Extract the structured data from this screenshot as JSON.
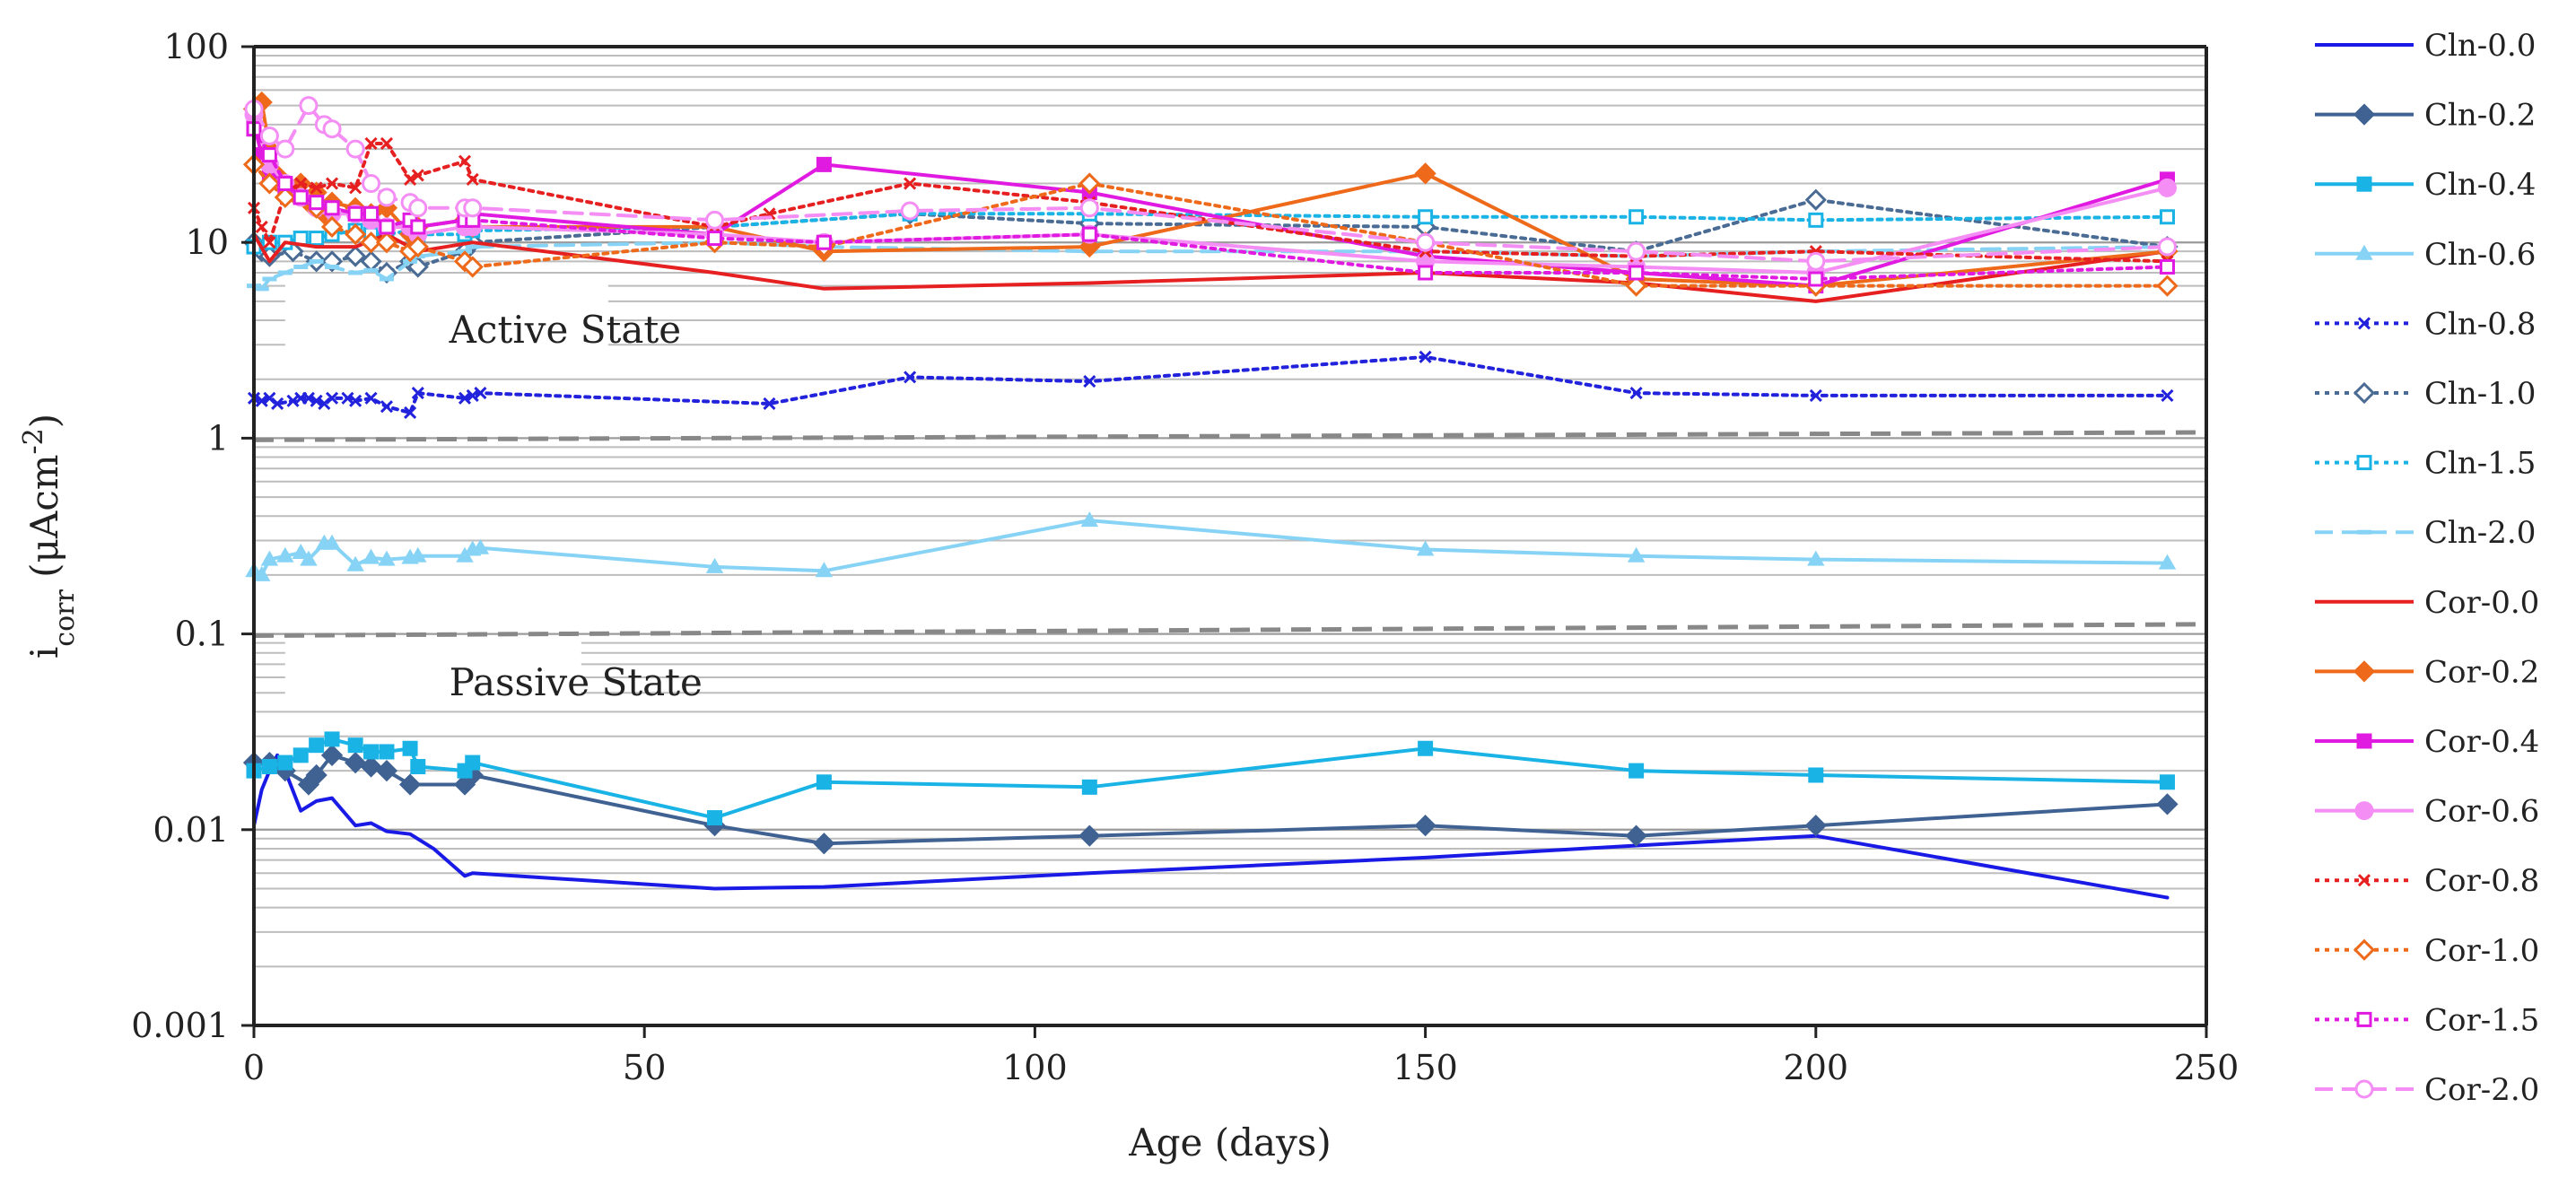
{
  "chart_data": {
    "type": "line",
    "y_scale": "log",
    "xlabel": "Age (days)",
    "ylabel_main": "i",
    "ylabel_sub": "corr",
    "ylabel_rest": " (μAcm",
    "ylabel_sup": "-2",
    "ylabel_close": ")",
    "xlim": [
      0,
      250
    ],
    "ylim": [
      0.001,
      100
    ],
    "x_ticks": [
      0,
      50,
      100,
      150,
      200,
      250
    ],
    "x_tick_labels": [
      "0",
      "50",
      "100",
      "150",
      "200",
      "250"
    ],
    "y_ticks": [
      0.001,
      0.01,
      0.1,
      1,
      10,
      100
    ],
    "y_tick_labels": [
      "0.001",
      "0.01",
      "0.1",
      "1",
      "10",
      "100"
    ],
    "annotations": [
      {
        "text": "Active State",
        "x": 22,
        "y": 3.6
      },
      {
        "text": "Passive State",
        "x": 22,
        "y": 0.057
      }
    ],
    "threshold_lines": [
      {
        "x": [
          0,
          250
        ],
        "y": [
          0.98,
          1.07
        ],
        "color": "#888888"
      },
      {
        "x": [
          0,
          250
        ],
        "y": [
          0.098,
          0.112
        ],
        "color": "#888888"
      }
    ],
    "legend_position": "right",
    "series": [
      {
        "name": "Cln-0.0",
        "color": "#1a1ae6",
        "dash": "solid",
        "marker": "none",
        "x": [
          0,
          1,
          2,
          3,
          4,
          6,
          8,
          10,
          13,
          15,
          17,
          20,
          23,
          27,
          28,
          59,
          73,
          107,
          150,
          177,
          200,
          245
        ],
        "y": [
          0.0105,
          0.016,
          0.02,
          0.024,
          0.02,
          0.0125,
          0.014,
          0.0145,
          0.0105,
          0.0108,
          0.0098,
          0.0095,
          0.008,
          0.0058,
          0.006,
          0.005,
          0.0051,
          0.006,
          0.0072,
          0.0083,
          0.0093,
          0.0045
        ]
      },
      {
        "name": "Cln-0.2",
        "color": "#3f6293",
        "dash": "solid",
        "marker": "diamond",
        "x": [
          0,
          2,
          4,
          7,
          8,
          10,
          13,
          15,
          17,
          20,
          27,
          28,
          59,
          73,
          107,
          150,
          177,
          200,
          245
        ],
        "y": [
          0.022,
          0.022,
          0.02,
          0.017,
          0.019,
          0.024,
          0.022,
          0.021,
          0.02,
          0.017,
          0.017,
          0.019,
          0.0105,
          0.0085,
          0.0093,
          0.0105,
          0.0093,
          0.0105,
          0.0135
        ]
      },
      {
        "name": "Cln-0.4",
        "color": "#1ab3e6",
        "dash": "solid",
        "marker": "square",
        "x": [
          0,
          2,
          4,
          6,
          8,
          10,
          13,
          15,
          17,
          20,
          21,
          27,
          28,
          59,
          73,
          107,
          150,
          177,
          200,
          245
        ],
        "y": [
          0.02,
          0.021,
          0.022,
          0.024,
          0.027,
          0.029,
          0.027,
          0.025,
          0.025,
          0.026,
          0.021,
          0.02,
          0.022,
          0.0115,
          0.0175,
          0.0165,
          0.026,
          0.02,
          0.019,
          0.0175
        ]
      },
      {
        "name": "Cln-0.6",
        "color": "#87d3f5",
        "dash": "solid",
        "marker": "triangle",
        "x": [
          0,
          1,
          2,
          4,
          6,
          7,
          9,
          10,
          13,
          15,
          17,
          20,
          21,
          27,
          28,
          29,
          59,
          73,
          107,
          150,
          177,
          200,
          245
        ],
        "y": [
          0.21,
          0.2,
          0.24,
          0.25,
          0.26,
          0.24,
          0.29,
          0.29,
          0.225,
          0.245,
          0.24,
          0.245,
          0.25,
          0.25,
          0.27,
          0.275,
          0.22,
          0.21,
          0.38,
          0.27,
          0.25,
          0.24,
          0.23
        ]
      },
      {
        "name": "Cln-0.8",
        "color": "#2222dd",
        "dash": "dot",
        "marker": "x",
        "x": [
          0,
          1,
          2,
          3,
          5,
          6,
          7,
          8,
          9,
          10,
          12,
          13,
          15,
          17,
          20,
          21,
          27,
          28,
          29,
          66,
          84,
          107,
          150,
          177,
          200,
          245
        ],
        "y": [
          1.6,
          1.55,
          1.6,
          1.5,
          1.55,
          1.6,
          1.6,
          1.55,
          1.5,
          1.6,
          1.6,
          1.55,
          1.6,
          1.45,
          1.35,
          1.7,
          1.6,
          1.65,
          1.7,
          1.5,
          2.05,
          1.95,
          2.6,
          1.7,
          1.65,
          1.65
        ]
      },
      {
        "name": "Cln-1.0",
        "color": "#4a6b93",
        "dash": "dot",
        "marker": "diamond-open",
        "x": [
          0,
          1,
          2,
          5,
          8,
          10,
          13,
          15,
          17,
          20,
          21,
          27,
          28,
          59,
          84,
          107,
          150,
          177,
          200,
          245
        ],
        "y": [
          10,
          9,
          8.5,
          9,
          8,
          8,
          8.5,
          8,
          7,
          8,
          7.5,
          9,
          10,
          12,
          14,
          12.5,
          12,
          9,
          16.5,
          9.5
        ]
      },
      {
        "name": "Cln-1.5",
        "color": "#1ab3e6",
        "dash": "dot",
        "marker": "square-open",
        "x": [
          0,
          2,
          4,
          6,
          8,
          10,
          13,
          15,
          17,
          20,
          21,
          27,
          28,
          59,
          84,
          107,
          150,
          177,
          200,
          245
        ],
        "y": [
          9.5,
          10,
          10,
          10.5,
          10.5,
          11,
          11.5,
          11,
          11,
          11.5,
          11,
          11,
          11.5,
          12,
          14,
          14,
          13.5,
          13.5,
          13,
          13.5
        ]
      },
      {
        "name": "Cln-2.0",
        "color": "#87d3f5",
        "dash": "dash",
        "marker": "dash-mark",
        "x": [
          0,
          1,
          2,
          4,
          6,
          8,
          10,
          13,
          15,
          17,
          20,
          21,
          27,
          28,
          59,
          73,
          107,
          150,
          177,
          200,
          245
        ],
        "y": [
          6,
          5.8,
          6.5,
          7,
          7.5,
          8,
          7.5,
          7,
          7.2,
          6.5,
          8,
          8.5,
          9,
          9.5,
          10,
          9.5,
          9,
          9,
          8.5,
          9,
          9.5
        ]
      },
      {
        "name": "Cor-0.0",
        "color": "#e62020",
        "dash": "solid",
        "marker": "none",
        "x": [
          0,
          2,
          4,
          8,
          13,
          17,
          21,
          28,
          59,
          73,
          107,
          150,
          177,
          200,
          245
        ],
        "y": [
          11,
          8,
          10,
          9.5,
          9.5,
          11,
          9,
          10,
          7,
          5.8,
          6.2,
          7,
          6.2,
          5,
          9
        ]
      },
      {
        "name": "Cor-0.2",
        "color": "#ee6a1a",
        "dash": "solid",
        "marker": "diamond",
        "x": [
          0,
          1,
          2,
          3,
          5,
          6,
          7,
          8,
          9,
          10,
          13,
          15,
          17,
          20,
          21,
          27,
          28,
          59,
          73,
          107,
          150,
          177,
          200,
          245
        ],
        "y": [
          48,
          52,
          30,
          22,
          18,
          20,
          16,
          18,
          14,
          16,
          15,
          14,
          15,
          11,
          12,
          13,
          12,
          12,
          9,
          9.5,
          22.5,
          6.5,
          6,
          9
        ]
      },
      {
        "name": "Cor-0.4",
        "color": "#e11ae1",
        "dash": "solid",
        "marker": "square",
        "x": [
          0,
          1,
          2,
          4,
          6,
          8,
          10,
          13,
          15,
          17,
          20,
          21,
          27,
          28,
          59,
          73,
          107,
          150,
          177,
          200,
          245
        ],
        "y": [
          40,
          28,
          22,
          18,
          17,
          16,
          15,
          14,
          14,
          12,
          12,
          12,
          13,
          14,
          11,
          25,
          18,
          8.5,
          7,
          6,
          21
        ]
      },
      {
        "name": "Cor-0.6",
        "color": "#f48ef4",
        "dash": "solid",
        "marker": "circle",
        "x": [
          0,
          2,
          4,
          6,
          8,
          10,
          13,
          15,
          17,
          20,
          21,
          27,
          28,
          59,
          73,
          107,
          150,
          177,
          200,
          245
        ],
        "y": [
          45,
          25,
          20,
          17,
          15,
          14,
          14,
          13,
          12,
          12,
          11,
          12,
          12,
          11,
          10,
          11,
          8,
          7.5,
          7,
          19
        ]
      },
      {
        "name": "Cor-0.8",
        "color": "#e62020",
        "dash": "dot",
        "marker": "x",
        "x": [
          0,
          1,
          2,
          4,
          6,
          8,
          10,
          13,
          15,
          17,
          20,
          21,
          27,
          28,
          59,
          66,
          84,
          107,
          150,
          177,
          200,
          245
        ],
        "y": [
          15,
          12,
          10,
          18,
          20,
          19,
          20,
          19,
          32,
          32,
          21,
          22,
          26,
          21,
          12,
          14,
          20,
          16,
          9,
          8.5,
          9,
          8
        ]
      },
      {
        "name": "Cor-1.0",
        "color": "#ee6a1a",
        "dash": "dot",
        "marker": "diamond-open",
        "x": [
          0,
          2,
          4,
          8,
          10,
          13,
          15,
          17,
          20,
          21,
          27,
          28,
          59,
          73,
          107,
          150,
          177,
          200,
          245
        ],
        "y": [
          25,
          20,
          17,
          15,
          12,
          11,
          10,
          10,
          9,
          9.5,
          8,
          7.5,
          10,
          9.5,
          20,
          10,
          6,
          6,
          6
        ]
      },
      {
        "name": "Cor-1.5",
        "color": "#e11ae1",
        "dash": "dot",
        "marker": "square-open",
        "x": [
          0,
          2,
          4,
          6,
          8,
          10,
          13,
          15,
          17,
          20,
          21,
          27,
          28,
          59,
          73,
          107,
          150,
          177,
          200,
          245
        ],
        "y": [
          38,
          28,
          20,
          17,
          16,
          15,
          14,
          14,
          12,
          13,
          12,
          13,
          13,
          10.5,
          10,
          11,
          7,
          7,
          6.5,
          7.5
        ]
      },
      {
        "name": "Cor-2.0",
        "color": "#f48ef4",
        "dash": "dash",
        "marker": "circle-open",
        "x": [
          0,
          2,
          4,
          7,
          9,
          10,
          13,
          15,
          17,
          20,
          21,
          27,
          28,
          59,
          84,
          107,
          150,
          177,
          200,
          245
        ],
        "y": [
          48,
          35,
          30,
          50,
          40,
          38,
          30,
          20,
          17,
          16,
          15,
          15,
          15,
          13,
          14.5,
          15,
          10,
          9,
          8,
          9.5
        ]
      }
    ]
  }
}
